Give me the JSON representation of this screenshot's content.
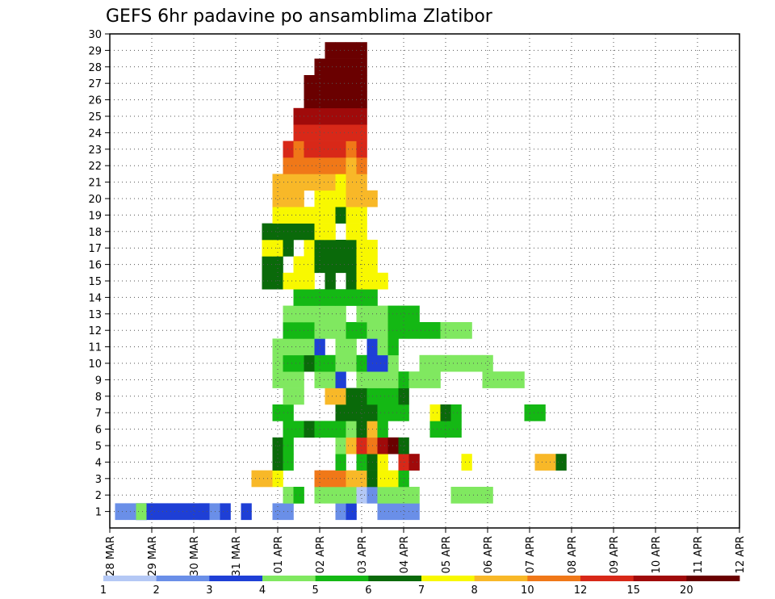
{
  "chart_data": {
    "type": "heatmap",
    "title": "GEFS 6hr padavine po ansamblima Zlatibor",
    "xlabel": "",
    "ylabel": "",
    "x_tick_labels": [
      "28 MAR",
      "29 MAR",
      "30 MAR",
      "31 MAR",
      "01 APR",
      "02 APR",
      "03 APR",
      "04 APR",
      "05 APR",
      "06 APR",
      "07 APR",
      "08 APR",
      "09 APR",
      "10 APR",
      "11 APR",
      "12 APR"
    ],
    "y_tick_labels": [
      "1",
      "2",
      "3",
      "4",
      "5",
      "6",
      "7",
      "8",
      "9",
      "10",
      "11",
      "12",
      "13",
      "14",
      "15",
      "16",
      "17",
      "18",
      "19",
      "20",
      "21",
      "22",
      "23",
      "24",
      "25",
      "26",
      "27",
      "28",
      "29",
      "30"
    ],
    "x_step_hours": 6,
    "n_steps": 61,
    "ylim": [
      0,
      30
    ],
    "grid": true,
    "colorbar_labels": [
      "1",
      "2",
      "3",
      "4",
      "5",
      "6",
      "7",
      "8",
      "10",
      "12",
      "15",
      "20"
    ],
    "colors": [
      "#b4c8f5",
      "#6a8fe8",
      "#1e3fd6",
      "#80e860",
      "#14b814",
      "#0a6a0a",
      "#f8f800",
      "#f8b828",
      "#f07818",
      "#d82818",
      "#a00a0a",
      "#6a0000"
    ],
    "cells": [
      [
        1,
        1,
        1
      ],
      [
        2,
        1,
        1
      ],
      [
        3,
        0,
        1
      ],
      [
        3,
        1,
        1
      ],
      [
        3,
        2,
        1
      ],
      [
        3,
        3,
        1
      ],
      [
        4,
        2,
        1
      ],
      [
        5,
        2,
        1
      ],
      [
        6,
        2,
        1
      ],
      [
        7,
        2,
        1
      ],
      [
        8,
        2,
        1
      ],
      [
        9,
        1,
        1
      ],
      [
        9,
        2,
        1
      ],
      [
        10,
        1,
        1
      ],
      [
        11,
        2,
        1
      ],
      [
        13,
        2,
        1
      ],
      [
        16,
        1,
        1
      ],
      [
        17,
        1,
        1
      ],
      [
        22,
        1,
        1
      ],
      [
        23,
        2,
        1
      ],
      [
        26,
        1,
        1
      ],
      [
        27,
        1,
        1
      ],
      [
        28,
        1,
        1
      ],
      [
        29,
        1,
        1
      ],
      [
        17,
        3,
        2
      ],
      [
        18,
        3,
        2
      ],
      [
        18,
        4,
        2
      ],
      [
        20,
        3,
        2
      ],
      [
        21,
        3,
        2
      ],
      [
        22,
        3,
        2
      ],
      [
        23,
        3,
        2
      ],
      [
        24,
        0,
        2
      ],
      [
        25,
        1,
        2
      ],
      [
        26,
        3,
        2
      ],
      [
        27,
        3,
        2
      ],
      [
        28,
        3,
        2
      ],
      [
        29,
        3,
        2
      ],
      [
        33,
        3,
        2
      ],
      [
        34,
        3,
        2
      ],
      [
        35,
        3,
        2
      ],
      [
        36,
        3,
        2
      ],
      [
        14,
        7,
        3
      ],
      [
        15,
        7,
        3
      ],
      [
        16,
        6,
        3
      ],
      [
        20,
        8,
        3
      ],
      [
        21,
        8,
        3
      ],
      [
        22,
        8,
        3
      ],
      [
        23,
        7,
        3
      ],
      [
        24,
        7,
        3
      ],
      [
        25,
        5,
        3
      ],
      [
        26,
        6,
        3
      ],
      [
        27,
        6,
        3
      ],
      [
        28,
        4,
        3
      ],
      [
        16,
        5,
        4
      ],
      [
        17,
        4,
        4
      ],
      [
        22,
        4,
        4
      ],
      [
        24,
        4,
        4
      ],
      [
        25,
        5,
        4
      ],
      [
        26,
        6,
        4
      ],
      [
        28,
        9,
        4
      ],
      [
        29,
        10,
        4
      ],
      [
        34,
        6,
        4
      ],
      [
        41,
        7,
        4
      ],
      [
        42,
        7,
        4
      ],
      [
        43,
        5,
        4
      ],
      [
        16,
        5,
        5
      ],
      [
        17,
        4,
        5
      ],
      [
        22,
        3,
        5
      ],
      [
        23,
        7,
        5
      ],
      [
        24,
        9,
        5
      ],
      [
        25,
        8,
        5
      ],
      [
        26,
        10,
        5
      ],
      [
        27,
        11,
        5
      ],
      [
        28,
        5,
        5
      ],
      [
        17,
        4,
        6
      ],
      [
        18,
        4,
        6
      ],
      [
        19,
        5,
        6
      ],
      [
        20,
        4,
        6
      ],
      [
        21,
        4,
        6
      ],
      [
        22,
        4,
        6
      ],
      [
        23,
        3,
        6
      ],
      [
        24,
        5,
        6
      ],
      [
        25,
        7,
        6
      ],
      [
        26,
        4,
        6
      ],
      [
        31,
        4,
        6
      ],
      [
        32,
        4,
        6
      ],
      [
        33,
        4,
        6
      ],
      [
        16,
        4,
        7
      ],
      [
        17,
        4,
        7
      ],
      [
        22,
        5,
        7
      ],
      [
        23,
        5,
        7
      ],
      [
        24,
        5,
        7
      ],
      [
        25,
        5,
        7
      ],
      [
        26,
        4,
        7
      ],
      [
        27,
        4,
        7
      ],
      [
        28,
        4,
        7
      ],
      [
        31,
        6,
        7
      ],
      [
        32,
        5,
        7
      ],
      [
        33,
        4,
        7
      ],
      [
        40,
        4,
        7
      ],
      [
        41,
        4,
        7
      ],
      [
        17,
        3,
        8
      ],
      [
        18,
        3,
        8
      ],
      [
        21,
        7,
        8
      ],
      [
        22,
        7,
        8
      ],
      [
        23,
        5,
        8
      ],
      [
        24,
        5,
        8
      ],
      [
        25,
        4,
        8
      ],
      [
        26,
        4,
        8
      ],
      [
        27,
        4,
        8
      ],
      [
        28,
        5,
        8
      ],
      [
        16,
        3,
        9
      ],
      [
        17,
        3,
        9
      ],
      [
        18,
        3,
        9
      ],
      [
        20,
        3,
        9
      ],
      [
        21,
        3,
        9
      ],
      [
        22,
        2,
        9
      ],
      [
        24,
        3,
        9
      ],
      [
        25,
        3,
        9
      ],
      [
        26,
        3,
        9
      ],
      [
        27,
        3,
        9
      ],
      [
        28,
        4,
        9
      ],
      [
        29,
        3,
        9
      ],
      [
        30,
        3,
        9
      ],
      [
        31,
        3,
        9
      ],
      [
        36,
        3,
        9
      ],
      [
        37,
        3,
        9
      ],
      [
        38,
        3,
        9
      ],
      [
        39,
        3,
        9
      ],
      [
        16,
        3,
        10
      ],
      [
        17,
        4,
        10
      ],
      [
        18,
        4,
        10
      ],
      [
        19,
        5,
        10
      ],
      [
        20,
        4,
        10
      ],
      [
        21,
        4,
        10
      ],
      [
        22,
        3,
        10
      ],
      [
        23,
        3,
        10
      ],
      [
        24,
        4,
        10
      ],
      [
        25,
        2,
        10
      ],
      [
        26,
        2,
        10
      ],
      [
        27,
        3,
        10
      ],
      [
        30,
        3,
        10
      ],
      [
        31,
        3,
        10
      ],
      [
        32,
        3,
        10
      ],
      [
        33,
        3,
        10
      ],
      [
        34,
        3,
        10
      ],
      [
        35,
        3,
        10
      ],
      [
        36,
        3,
        10
      ],
      [
        16,
        3,
        11
      ],
      [
        17,
        3,
        11
      ],
      [
        18,
        3,
        11
      ],
      [
        19,
        3,
        11
      ],
      [
        20,
        2,
        11
      ],
      [
        22,
        3,
        11
      ],
      [
        23,
        3,
        11
      ],
      [
        25,
        2,
        11
      ],
      [
        26,
        3,
        11
      ],
      [
        27,
        4,
        11
      ],
      [
        17,
        4,
        12
      ],
      [
        18,
        4,
        12
      ],
      [
        19,
        4,
        12
      ],
      [
        20,
        3,
        12
      ],
      [
        21,
        3,
        12
      ],
      [
        22,
        3,
        12
      ],
      [
        23,
        4,
        12
      ],
      [
        24,
        4,
        12
      ],
      [
        25,
        3,
        12
      ],
      [
        26,
        3,
        12
      ],
      [
        27,
        4,
        12
      ],
      [
        28,
        4,
        12
      ],
      [
        29,
        4,
        12
      ],
      [
        30,
        4,
        12
      ],
      [
        31,
        4,
        12
      ],
      [
        32,
        3,
        12
      ],
      [
        33,
        3,
        12
      ],
      [
        34,
        3,
        12
      ],
      [
        17,
        3,
        13
      ],
      [
        18,
        3,
        13
      ],
      [
        19,
        3,
        13
      ],
      [
        20,
        3,
        13
      ],
      [
        21,
        3,
        13
      ],
      [
        22,
        3,
        13
      ],
      [
        24,
        3,
        13
      ],
      [
        25,
        3,
        13
      ],
      [
        26,
        3,
        13
      ],
      [
        27,
        4,
        13
      ],
      [
        28,
        4,
        13
      ],
      [
        29,
        4,
        13
      ],
      [
        18,
        4,
        14
      ],
      [
        19,
        4,
        14
      ],
      [
        20,
        4,
        14
      ],
      [
        21,
        4,
        14
      ],
      [
        22,
        4,
        14
      ],
      [
        23,
        4,
        14
      ],
      [
        24,
        4,
        14
      ],
      [
        25,
        4,
        14
      ],
      [
        15,
        5,
        15
      ],
      [
        16,
        5,
        15
      ],
      [
        17,
        6,
        15
      ],
      [
        18,
        6,
        15
      ],
      [
        19,
        6,
        15
      ],
      [
        21,
        5,
        15
      ],
      [
        23,
        5,
        15
      ],
      [
        24,
        6,
        15
      ],
      [
        25,
        6,
        15
      ],
      [
        26,
        6,
        15
      ],
      [
        15,
        5,
        16
      ],
      [
        16,
        5,
        16
      ],
      [
        18,
        6,
        16
      ],
      [
        19,
        6,
        16
      ],
      [
        20,
        5,
        16
      ],
      [
        21,
        5,
        16
      ],
      [
        22,
        5,
        16
      ],
      [
        23,
        5,
        16
      ],
      [
        24,
        6,
        16
      ],
      [
        25,
        6,
        16
      ],
      [
        15,
        6,
        17
      ],
      [
        16,
        6,
        17
      ],
      [
        17,
        5,
        17
      ],
      [
        19,
        6,
        17
      ],
      [
        20,
        5,
        17
      ],
      [
        21,
        5,
        17
      ],
      [
        22,
        5,
        17
      ],
      [
        23,
        5,
        17
      ],
      [
        24,
        6,
        17
      ],
      [
        25,
        6,
        17
      ],
      [
        15,
        5,
        18
      ],
      [
        16,
        5,
        18
      ],
      [
        17,
        5,
        18
      ],
      [
        18,
        5,
        18
      ],
      [
        19,
        5,
        18
      ],
      [
        20,
        6,
        18
      ],
      [
        21,
        6,
        18
      ],
      [
        23,
        6,
        18
      ],
      [
        24,
        6,
        18
      ],
      [
        16,
        6,
        19
      ],
      [
        17,
        6,
        19
      ],
      [
        18,
        6,
        19
      ],
      [
        19,
        6,
        19
      ],
      [
        20,
        6,
        19
      ],
      [
        21,
        6,
        19
      ],
      [
        22,
        5,
        19
      ],
      [
        23,
        6,
        19
      ],
      [
        24,
        6,
        19
      ],
      [
        16,
        7,
        20
      ],
      [
        17,
        7,
        20
      ],
      [
        18,
        7,
        20
      ],
      [
        20,
        6,
        20
      ],
      [
        21,
        6,
        20
      ],
      [
        22,
        6,
        20
      ],
      [
        23,
        7,
        20
      ],
      [
        24,
        7,
        20
      ],
      [
        25,
        7,
        20
      ],
      [
        16,
        7,
        21
      ],
      [
        17,
        7,
        21
      ],
      [
        18,
        7,
        21
      ],
      [
        19,
        7,
        21
      ],
      [
        20,
        7,
        21
      ],
      [
        21,
        7,
        21
      ],
      [
        22,
        6,
        21
      ],
      [
        23,
        7,
        21
      ],
      [
        24,
        7,
        21
      ],
      [
        17,
        8,
        22
      ],
      [
        18,
        8,
        22
      ],
      [
        19,
        8,
        22
      ],
      [
        20,
        8,
        22
      ],
      [
        21,
        8,
        22
      ],
      [
        22,
        8,
        22
      ],
      [
        23,
        7,
        22
      ],
      [
        24,
        8,
        22
      ],
      [
        17,
        9,
        23
      ],
      [
        18,
        8,
        23
      ],
      [
        19,
        9,
        23
      ],
      [
        20,
        9,
        23
      ],
      [
        21,
        9,
        23
      ],
      [
        22,
        9,
        23
      ],
      [
        23,
        8,
        23
      ],
      [
        24,
        9,
        23
      ],
      [
        18,
        9,
        24
      ],
      [
        19,
        9,
        24
      ],
      [
        20,
        9,
        24
      ],
      [
        21,
        9,
        24
      ],
      [
        22,
        9,
        24
      ],
      [
        23,
        9,
        24
      ],
      [
        24,
        9,
        24
      ],
      [
        18,
        10,
        25
      ],
      [
        19,
        10,
        25
      ],
      [
        20,
        10,
        25
      ],
      [
        21,
        10,
        25
      ],
      [
        22,
        10,
        25
      ],
      [
        23,
        10,
        25
      ],
      [
        24,
        10,
        25
      ],
      [
        19,
        11,
        26
      ],
      [
        20,
        11,
        26
      ],
      [
        21,
        11,
        26
      ],
      [
        22,
        11,
        26
      ],
      [
        23,
        11,
        26
      ],
      [
        24,
        11,
        26
      ],
      [
        19,
        11,
        27
      ],
      [
        20,
        11,
        27
      ],
      [
        21,
        11,
        27
      ],
      [
        22,
        11,
        27
      ],
      [
        23,
        11,
        27
      ],
      [
        24,
        11,
        27
      ],
      [
        20,
        11,
        28
      ],
      [
        21,
        11,
        28
      ],
      [
        22,
        11,
        28
      ],
      [
        23,
        11,
        28
      ],
      [
        24,
        11,
        28
      ],
      [
        21,
        11,
        29
      ],
      [
        22,
        11,
        29
      ],
      [
        23,
        11,
        29
      ],
      [
        24,
        11,
        29
      ]
    ]
  }
}
